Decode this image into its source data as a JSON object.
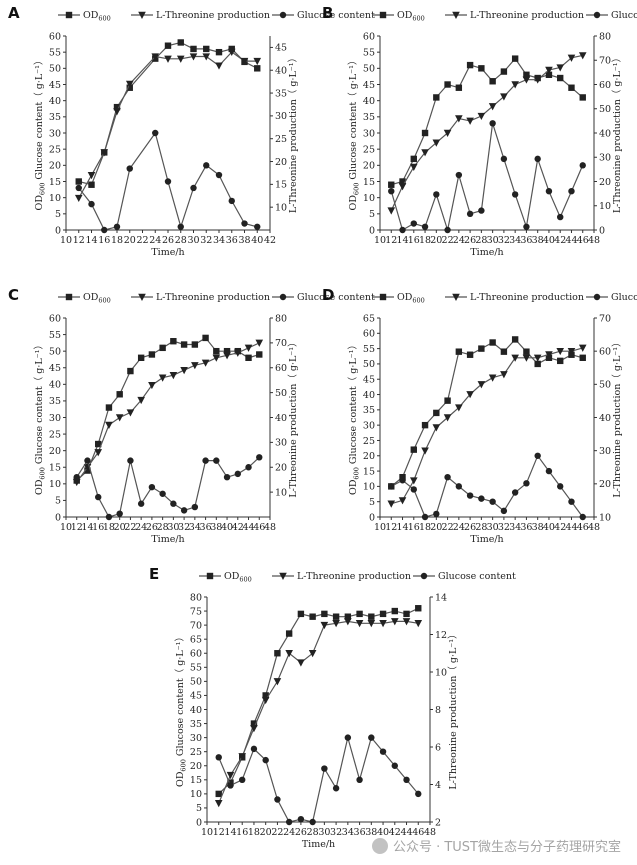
{
  "figure": {
    "watermark_text": "公众号 · TUST微生态与分子药理研究室",
    "legend_labels": {
      "od": "OD600",
      "thr": "L-Threonine production",
      "glu": "Glucose content"
    },
    "left_axis_title": "OD600 Glucose content（ g·L⁻¹）",
    "right_axis_title": "L-Threonine production（ g·L⁻¹）",
    "x_axis_title": "Time/h"
  },
  "chart_data": [
    {
      "panel": "A",
      "type": "line",
      "xlabel": "Time/h",
      "ylabel": "OD600 Glucose content（ g·L⁻¹）",
      "y2label": "L-Threonine production（ g·L⁻¹）",
      "xlim": [
        10,
        42
      ],
      "xticks": [
        10,
        12,
        14,
        16,
        18,
        20,
        22,
        24,
        26,
        28,
        30,
        32,
        34,
        36,
        38,
        40,
        42
      ],
      "ylim": [
        0,
        60
      ],
      "yticks": [
        0,
        5,
        10,
        15,
        20,
        25,
        30,
        35,
        40,
        45,
        50,
        55,
        60
      ],
      "y2lim": [
        5,
        47.5
      ],
      "y2ticks": [
        10,
        15,
        20,
        25,
        30,
        35,
        40,
        45
      ],
      "series": [
        {
          "name": "OD600",
          "axis": "left",
          "marker": "square",
          "x": [
            12,
            14,
            16,
            18,
            20,
            24,
            26,
            28,
            30,
            32,
            34,
            36,
            38,
            40
          ],
          "y": [
            15,
            14,
            24,
            38,
            44,
            53,
            57,
            58,
            56,
            56,
            55,
            56,
            52,
            50
          ]
        },
        {
          "name": "L-Threonine production",
          "axis": "right",
          "marker": "triangle-down",
          "x": [
            12,
            14,
            16,
            18,
            20,
            24,
            26,
            28,
            30,
            32,
            34,
            36,
            38,
            40
          ],
          "y": [
            12,
            17,
            22,
            31,
            37,
            43,
            42.5,
            42.5,
            43,
            43,
            41,
            44,
            42,
            42
          ]
        },
        {
          "name": "Glucose content",
          "axis": "left",
          "marker": "circle",
          "x": [
            12,
            14,
            16,
            18,
            20,
            24,
            26,
            28,
            30,
            32,
            34,
            36,
            38,
            40
          ],
          "y": [
            13,
            8,
            0,
            1,
            19,
            30,
            15,
            1,
            13,
            20,
            17,
            9,
            2,
            1
          ]
        }
      ]
    },
    {
      "panel": "B",
      "type": "line",
      "xlabel": "Time/h",
      "ylabel": "OD600 Glucose content（ g·L⁻¹）",
      "y2label": "L-Threonine production（ g·L⁻¹）",
      "xlim": [
        10,
        48
      ],
      "xticks": [
        10,
        12,
        14,
        16,
        18,
        20,
        22,
        24,
        26,
        28,
        30,
        32,
        34,
        36,
        38,
        40,
        42,
        44,
        46,
        48
      ],
      "ylim": [
        0,
        60
      ],
      "yticks": [
        0,
        5,
        10,
        15,
        20,
        25,
        30,
        35,
        40,
        45,
        50,
        55,
        60
      ],
      "y2lim": [
        0,
        80
      ],
      "y2ticks": [
        0,
        10,
        20,
        30,
        40,
        50,
        60,
        70,
        80
      ],
      "series": [
        {
          "name": "OD600",
          "axis": "left",
          "marker": "square",
          "x": [
            12,
            14,
            16,
            18,
            20,
            22,
            24,
            26,
            28,
            30,
            32,
            34,
            36,
            38,
            40,
            42,
            44,
            46
          ],
          "y": [
            14,
            15,
            22,
            30,
            41,
            45,
            44,
            51,
            50,
            46,
            49,
            53,
            48,
            47,
            48,
            47,
            44,
            41
          ]
        },
        {
          "name": "L-Threonine production",
          "axis": "right",
          "marker": "triangle-down",
          "x": [
            12,
            14,
            16,
            18,
            20,
            22,
            24,
            26,
            28,
            30,
            32,
            34,
            36,
            38,
            40,
            42,
            44,
            46
          ],
          "y": [
            8,
            18,
            26,
            32,
            36,
            40,
            46,
            45,
            47,
            51,
            55,
            60,
            62,
            62,
            66,
            67,
            71,
            72
          ]
        },
        {
          "name": "Glucose content",
          "axis": "left",
          "marker": "circle",
          "x": [
            12,
            14,
            16,
            18,
            20,
            22,
            24,
            26,
            28,
            30,
            32,
            34,
            36,
            38,
            40,
            42,
            44,
            46
          ],
          "y": [
            12,
            0,
            2,
            1,
            11,
            0,
            17,
            5,
            6,
            33,
            22,
            11,
            1,
            22,
            12,
            4,
            12,
            20
          ]
        }
      ]
    },
    {
      "panel": "C",
      "type": "line",
      "xlabel": "Time/h",
      "ylabel": "OD600 Glucose content（ g·L⁻¹）",
      "y2label": "L-Threonine production（ g·L⁻¹）",
      "xlim": [
        10,
        48
      ],
      "xticks": [
        10,
        12,
        14,
        16,
        18,
        20,
        22,
        24,
        26,
        28,
        30,
        32,
        34,
        36,
        38,
        40,
        42,
        44,
        46,
        48
      ],
      "ylim": [
        0,
        60
      ],
      "yticks": [
        0,
        5,
        10,
        15,
        20,
        25,
        30,
        35,
        40,
        45,
        50,
        55,
        60
      ],
      "y2lim": [
        0,
        80
      ],
      "y2ticks": [
        10,
        20,
        30,
        40,
        50,
        60,
        70,
        80
      ],
      "series": [
        {
          "name": "OD600",
          "axis": "left",
          "marker": "square",
          "x": [
            12,
            14,
            16,
            18,
            20,
            22,
            24,
            26,
            28,
            30,
            32,
            34,
            36,
            38,
            40,
            42,
            44,
            46
          ],
          "y": [
            11,
            14,
            22,
            33,
            37,
            44,
            48,
            49,
            51,
            53,
            52,
            52,
            54,
            50,
            50,
            50,
            48,
            49
          ]
        },
        {
          "name": "L-Threonine production",
          "axis": "right",
          "marker": "triangle-down",
          "x": [
            12,
            14,
            16,
            18,
            20,
            22,
            24,
            26,
            28,
            30,
            32,
            34,
            36,
            38,
            40,
            42,
            44,
            46
          ],
          "y": [
            14,
            20,
            26,
            37,
            40,
            42,
            47,
            53,
            56,
            57,
            59,
            61,
            62,
            64,
            65,
            66,
            68,
            70
          ]
        },
        {
          "name": "Glucose content",
          "axis": "left",
          "marker": "circle",
          "x": [
            12,
            14,
            16,
            18,
            20,
            22,
            24,
            26,
            28,
            30,
            32,
            34,
            36,
            38,
            40,
            42,
            44,
            46
          ],
          "y": [
            12,
            17,
            6,
            0,
            1,
            17,
            4,
            9,
            7,
            4,
            2,
            3,
            17,
            17,
            12,
            13,
            15,
            18
          ]
        }
      ]
    },
    {
      "panel": "D",
      "type": "line",
      "xlabel": "Time/h",
      "ylabel": "OD600 Glucose content（ g·L⁻¹）",
      "y2label": "L-Threonine production（ g·L⁻¹）",
      "xlim": [
        10,
        48
      ],
      "xticks": [
        10,
        12,
        14,
        16,
        18,
        20,
        22,
        24,
        26,
        28,
        30,
        32,
        34,
        36,
        38,
        40,
        42,
        44,
        46,
        48
      ],
      "ylim": [
        0,
        65
      ],
      "yticks": [
        0,
        5,
        10,
        15,
        20,
        25,
        30,
        35,
        40,
        45,
        50,
        55,
        60,
        65
      ],
      "y2lim": [
        10,
        70
      ],
      "y2ticks": [
        10,
        20,
        30,
        40,
        50,
        60,
        70
      ],
      "series": [
        {
          "name": "OD600",
          "axis": "left",
          "marker": "square",
          "x": [
            12,
            14,
            16,
            18,
            20,
            22,
            24,
            26,
            28,
            30,
            32,
            34,
            36,
            38,
            40,
            42,
            44,
            46
          ],
          "y": [
            10,
            13,
            22,
            30,
            34,
            38,
            54,
            53,
            55,
            57,
            54,
            58,
            54,
            50,
            52,
            51,
            53,
            52
          ]
        },
        {
          "name": "L-Threonine production",
          "axis": "right",
          "marker": "triangle-down",
          "x": [
            12,
            14,
            16,
            18,
            20,
            22,
            24,
            26,
            28,
            30,
            32,
            34,
            36,
            38,
            40,
            42,
            44,
            46
          ],
          "y": [
            14,
            15,
            21,
            30,
            37,
            40,
            43,
            47,
            50,
            52,
            53,
            58,
            58,
            58,
            59,
            60,
            60,
            61
          ]
        },
        {
          "name": "Glucose content",
          "axis": "left",
          "marker": "circle",
          "x": [
            12,
            14,
            16,
            18,
            20,
            22,
            24,
            26,
            28,
            30,
            32,
            34,
            36,
            38,
            40,
            42,
            44,
            46
          ],
          "y": [
            10,
            12,
            9,
            0,
            1,
            13,
            10,
            7,
            6,
            5,
            2,
            8,
            11,
            20,
            15,
            10,
            5,
            0
          ]
        }
      ]
    },
    {
      "panel": "E",
      "type": "line",
      "xlabel": "Time/h",
      "ylabel": "OD600 Glucose content（ g·L⁻¹）",
      "y2label": "L-Threonine production（ g·L⁻¹）",
      "xlim": [
        10,
        48
      ],
      "xticks": [
        10,
        12,
        14,
        16,
        18,
        20,
        22,
        24,
        26,
        28,
        30,
        32,
        34,
        36,
        38,
        40,
        42,
        44,
        46,
        48
      ],
      "ylim": [
        0,
        80
      ],
      "yticks": [
        0,
        5,
        10,
        15,
        20,
        25,
        30,
        35,
        40,
        45,
        50,
        55,
        60,
        65,
        70,
        75,
        80
      ],
      "y2lim": [
        2,
        14
      ],
      "y2ticks": [
        2,
        4,
        6,
        8,
        10,
        12,
        14
      ],
      "series": [
        {
          "name": "OD600",
          "axis": "left",
          "marker": "square",
          "x": [
            12,
            14,
            16,
            18,
            20,
            22,
            24,
            26,
            28,
            30,
            32,
            34,
            36,
            38,
            40,
            42,
            44,
            46
          ],
          "y": [
            10,
            14,
            23,
            35,
            45,
            60,
            67,
            74,
            73,
            74,
            73,
            73,
            74,
            73,
            74,
            75,
            74,
            76
          ]
        },
        {
          "name": "L-Threonine production",
          "axis": "right",
          "marker": "triangle-down",
          "x": [
            12,
            14,
            16,
            18,
            20,
            22,
            24,
            26,
            28,
            30,
            32,
            34,
            36,
            38,
            40,
            42,
            44,
            46
          ],
          "y": [
            3,
            4.5,
            5.5,
            7,
            8.5,
            9.5,
            11,
            10.5,
            11,
            12.5,
            12.6,
            12.7,
            12.6,
            12.6,
            12.6,
            12.7,
            12.7,
            12.6
          ]
        },
        {
          "name": "Glucose content",
          "axis": "left",
          "marker": "circle",
          "x": [
            12,
            14,
            16,
            18,
            20,
            22,
            24,
            26,
            28,
            30,
            32,
            34,
            36,
            38,
            40,
            42,
            44,
            46
          ],
          "y": [
            23,
            13,
            15,
            26,
            22,
            8,
            0,
            1,
            0,
            19,
            12,
            30,
            15,
            30,
            25,
            20,
            15,
            10
          ]
        }
      ]
    }
  ]
}
